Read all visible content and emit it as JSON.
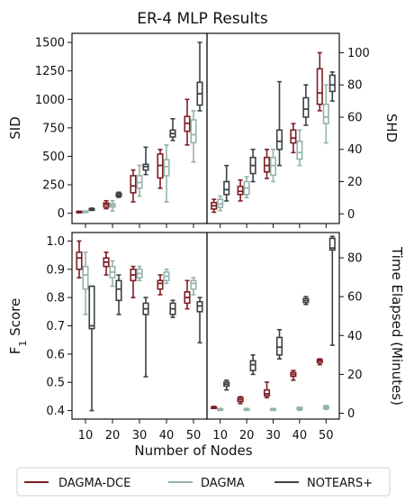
{
  "title": "ER-4 MLP Results",
  "xlabel": "Number of Nodes",
  "colors": {
    "DAGMA-DCE": "#7f1d22",
    "DAGMA": "#94b3aa",
    "NOTEARS+": "#3b4242"
  },
  "chart_data": [
    {
      "type": "box",
      "name": "SID",
      "ylabel": "SID",
      "yaxis_side": "left",
      "ylim": [
        -90,
        1580
      ],
      "yticks": [
        0,
        250,
        500,
        750,
        1000,
        1250,
        1500
      ],
      "categories": [
        10,
        20,
        30,
        40,
        50
      ],
      "series": [
        {
          "name": "DAGMA-DCE",
          "boxes": [
            {
              "min": 10,
              "q1": 12,
              "median": 14,
              "q3": 16,
              "max": 18
            },
            {
              "min": 40,
              "q1": 55,
              "median": 75,
              "q3": 90,
              "max": 110
            },
            {
              "min": 100,
              "q1": 180,
              "median": 240,
              "q3": 330,
              "max": 380
            },
            {
              "min": 220,
              "q1": 310,
              "median": 420,
              "q3": 520,
              "max": 560
            },
            {
              "min": 600,
              "q1": 720,
              "median": 790,
              "q3": 850,
              "max": 1000
            }
          ]
        },
        {
          "name": "DAGMA",
          "boxes": [
            {
              "min": 12,
              "q1": 14,
              "median": 16,
              "q3": 18,
              "max": 20
            },
            {
              "min": 20,
              "q1": 55,
              "median": 70,
              "q3": 85,
              "max": 110
            },
            {
              "min": 150,
              "q1": 220,
              "median": 270,
              "q3": 330,
              "max": 420
            },
            {
              "min": 100,
              "q1": 330,
              "median": 410,
              "q3": 470,
              "max": 600
            },
            {
              "min": 450,
              "q1": 620,
              "median": 690,
              "q3": 820,
              "max": 900
            }
          ]
        },
        {
          "name": "NOTEARS+",
          "boxes": [
            {
              "min": 25,
              "q1": 30,
              "median": 35,
              "q3": 40,
              "max": 45
            },
            {
              "min": 140,
              "q1": 150,
              "median": 160,
              "q3": 175,
              "max": 185
            },
            {
              "min": 340,
              "q1": 380,
              "median": 410,
              "q3": 430,
              "max": 580
            },
            {
              "min": 640,
              "q1": 670,
              "median": 700,
              "q3": 730,
              "max": 830
            },
            {
              "min": 900,
              "q1": 950,
              "median": 1050,
              "q3": 1150,
              "max": 1500
            }
          ]
        }
      ]
    },
    {
      "type": "box",
      "name": "SHD",
      "ylabel": "SHD",
      "yaxis_side": "right",
      "ylim": [
        -6,
        112
      ],
      "yticks": [
        0,
        20,
        40,
        60,
        80,
        100
      ],
      "categories": [
        10,
        20,
        30,
        40,
        50
      ],
      "series": [
        {
          "name": "DAGMA-DCE",
          "boxes": [
            {
              "min": 1,
              "q1": 3,
              "median": 5,
              "q3": 7,
              "max": 9
            },
            {
              "min": 8,
              "q1": 12,
              "median": 14,
              "q3": 17,
              "max": 21
            },
            {
              "min": 22,
              "q1": 26,
              "median": 30,
              "q3": 35,
              "max": 40
            },
            {
              "min": 38,
              "q1": 44,
              "median": 47,
              "q3": 52,
              "max": 56
            },
            {
              "min": 64,
              "q1": 68,
              "median": 75,
              "q3": 90,
              "max": 100
            }
          ]
        },
        {
          "name": "DAGMA",
          "boxes": [
            {
              "min": 2,
              "q1": 4,
              "median": 6,
              "q3": 9,
              "max": 11
            },
            {
              "min": 10,
              "q1": 12,
              "median": 16,
              "q3": 20,
              "max": 23
            },
            {
              "min": 20,
              "q1": 24,
              "median": 30,
              "q3": 35,
              "max": 40
            },
            {
              "min": 30,
              "q1": 34,
              "median": 38,
              "q3": 45,
              "max": 52
            },
            {
              "min": 44,
              "q1": 56,
              "median": 60,
              "q3": 68,
              "max": 80
            }
          ]
        },
        {
          "name": "NOTEARS+",
          "boxes": [
            {
              "min": 8,
              "q1": 12,
              "median": 15,
              "q3": 20,
              "max": 30
            },
            {
              "min": 20,
              "q1": 25,
              "median": 30,
              "q3": 35,
              "max": 40
            },
            {
              "min": 30,
              "q1": 40,
              "median": 45,
              "q3": 52,
              "max": 82
            },
            {
              "min": 55,
              "q1": 60,
              "median": 65,
              "q3": 72,
              "max": 80
            },
            {
              "min": 70,
              "q1": 76,
              "median": 80,
              "q3": 86,
              "max": 88
            }
          ]
        }
      ]
    },
    {
      "type": "box",
      "name": "F1",
      "ylabel": "F",
      "ylabel_subscript": "1",
      "ylabel_suffix": " Score",
      "yaxis_side": "left",
      "ylim": [
        0.37,
        1.03
      ],
      "yticks": [
        0.4,
        0.5,
        0.6,
        0.7,
        0.8,
        0.9,
        1.0
      ],
      "categories": [
        10,
        20,
        30,
        40,
        50
      ],
      "series": [
        {
          "name": "DAGMA-DCE",
          "boxes": [
            {
              "min": 0.87,
              "q1": 0.9,
              "median": 0.94,
              "q3": 0.96,
              "max": 1.0
            },
            {
              "min": 0.88,
              "q1": 0.91,
              "median": 0.925,
              "q3": 0.94,
              "max": 0.96
            },
            {
              "min": 0.8,
              "q1": 0.86,
              "median": 0.88,
              "q3": 0.9,
              "max": 0.91
            },
            {
              "min": 0.81,
              "q1": 0.83,
              "median": 0.85,
              "q3": 0.86,
              "max": 0.88
            },
            {
              "min": 0.76,
              "q1": 0.78,
              "median": 0.8,
              "q3": 0.82,
              "max": 0.86
            }
          ]
        },
        {
          "name": "DAGMA",
          "boxes": [
            {
              "min": 0.74,
              "q1": 0.83,
              "median": 0.88,
              "q3": 0.91,
              "max": 0.96
            },
            {
              "min": 0.84,
              "q1": 0.87,
              "median": 0.89,
              "q3": 0.91,
              "max": 0.93
            },
            {
              "min": 0.86,
              "q1": 0.87,
              "median": 0.885,
              "q3": 0.9,
              "max": 0.91
            },
            {
              "min": 0.85,
              "q1": 0.86,
              "median": 0.875,
              "q3": 0.89,
              "max": 0.9
            },
            {
              "min": 0.81,
              "q1": 0.83,
              "median": 0.85,
              "q3": 0.86,
              "max": 0.87
            }
          ]
        },
        {
          "name": "NOTEARS+",
          "boxes": [
            {
              "min": 0.4,
              "q1": 0.69,
              "median": 0.7,
              "q3": 0.84,
              "max": 0.84
            },
            {
              "min": 0.74,
              "q1": 0.79,
              "median": 0.83,
              "q3": 0.86,
              "max": 0.88
            },
            {
              "min": 0.52,
              "q1": 0.74,
              "median": 0.76,
              "q3": 0.78,
              "max": 0.8
            },
            {
              "min": 0.73,
              "q1": 0.74,
              "median": 0.76,
              "q3": 0.78,
              "max": 0.79
            },
            {
              "min": 0.64,
              "q1": 0.75,
              "median": 0.77,
              "q3": 0.785,
              "max": 0.8
            }
          ]
        }
      ]
    },
    {
      "type": "box",
      "name": "Time",
      "ylabel": "Time Elapsed (Minutes)",
      "yaxis_side": "right",
      "ylim": [
        -3,
        93
      ],
      "yticks": [
        0,
        20,
        40,
        60,
        80
      ],
      "categories": [
        10,
        20,
        30,
        40,
        50
      ],
      "series": [
        {
          "name": "DAGMA-DCE",
          "boxes": [
            {
              "min": 2.5,
              "q1": 2.8,
              "median": 3.0,
              "q3": 3.2,
              "max": 3.5
            },
            {
              "min": 5,
              "q1": 6,
              "median": 7,
              "q3": 8,
              "max": 8.5
            },
            {
              "min": 8,
              "q1": 9,
              "median": 10,
              "q3": 12,
              "max": 16
            },
            {
              "min": 17,
              "q1": 19,
              "median": 20,
              "q3": 21,
              "max": 22
            },
            {
              "min": 25,
              "q1": 26,
              "median": 27,
              "q3": 27.5,
              "max": 28
            }
          ]
        },
        {
          "name": "DAGMA",
          "boxes": [
            {
              "min": 1.5,
              "q1": 1.8,
              "median": 2.0,
              "q3": 2.2,
              "max": 2.5
            },
            {
              "min": 1.5,
              "q1": 1.8,
              "median": 2.0,
              "q3": 2.3,
              "max": 2.5
            },
            {
              "min": 1.5,
              "q1": 1.8,
              "median": 2.0,
              "q3": 2.2,
              "max": 2.5
            },
            {
              "min": 1.5,
              "q1": 2.0,
              "median": 2.5,
              "q3": 3.0,
              "max": 3.0
            },
            {
              "min": 2.0,
              "q1": 2.5,
              "median": 3.0,
              "q3": 3.5,
              "max": 4.0
            }
          ]
        },
        {
          "name": "NOTEARS+",
          "boxes": [
            {
              "min": 12,
              "q1": 14,
              "median": 15,
              "q3": 16,
              "max": 17
            },
            {
              "min": 20,
              "q1": 22,
              "median": 25,
              "q3": 27,
              "max": 30
            },
            {
              "min": 28,
              "q1": 30,
              "median": 34,
              "q3": 39,
              "max": 43
            },
            {
              "min": 56,
              "q1": 57,
              "median": 58,
              "q3": 59,
              "max": 60
            },
            {
              "min": 35,
              "q1": 84,
              "median": 85,
              "q3": 90,
              "max": 91
            }
          ]
        }
      ]
    }
  ],
  "legend": {
    "items": [
      "DAGMA-DCE",
      "DAGMA",
      "NOTEARS+"
    ]
  }
}
